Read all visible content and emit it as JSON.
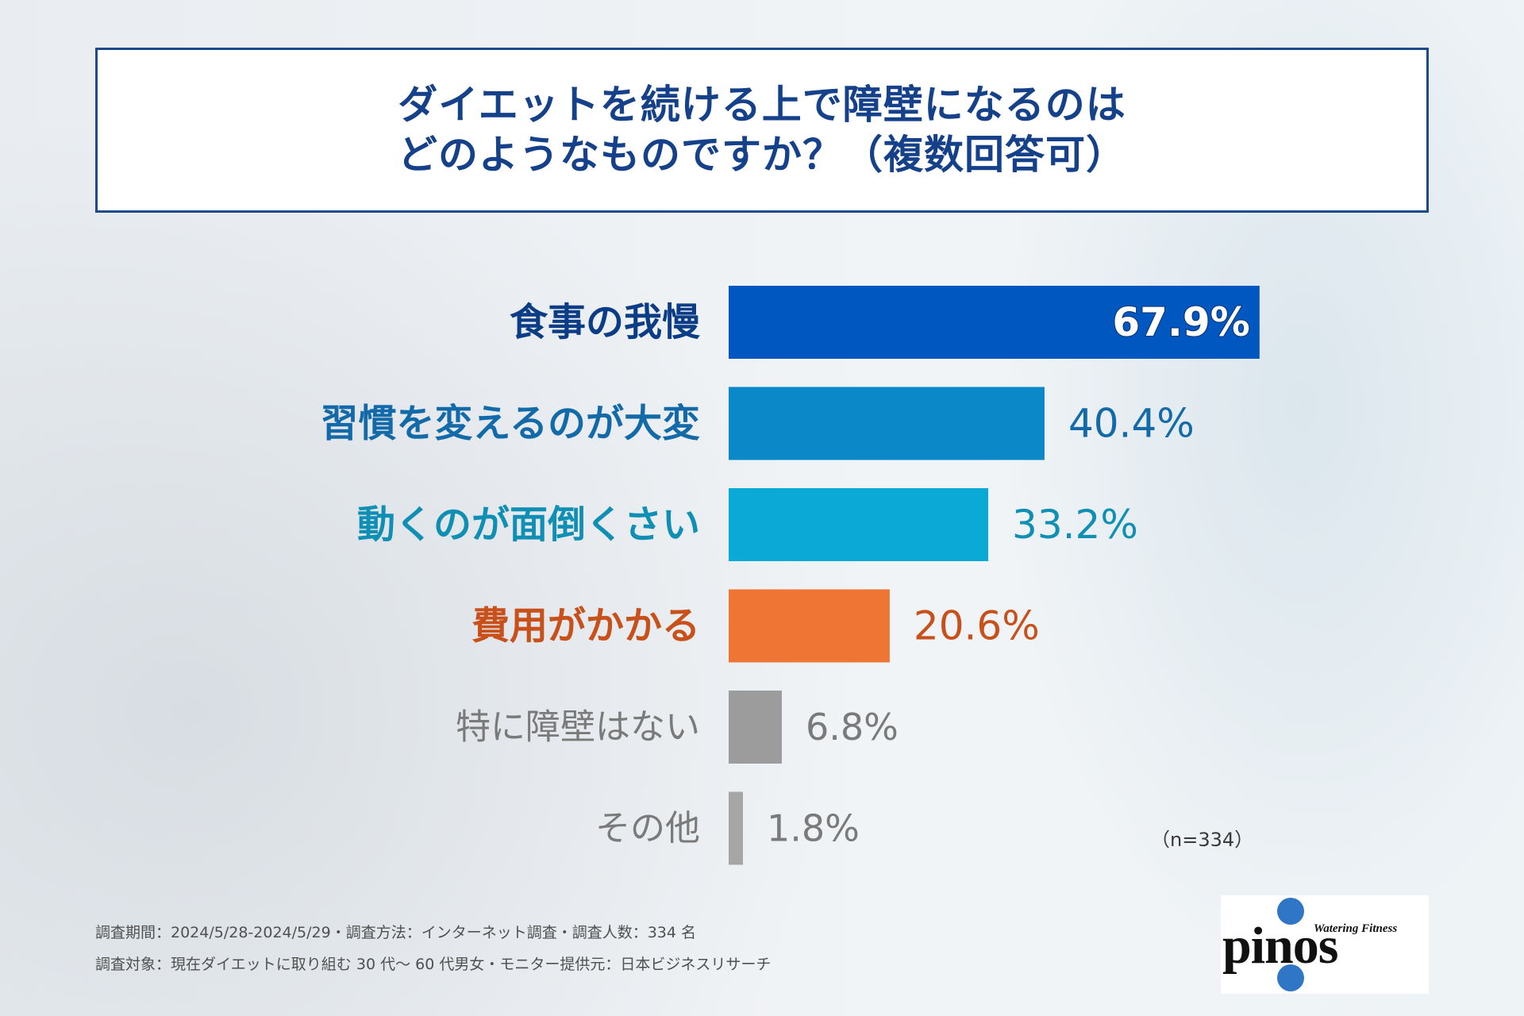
{
  "title": {
    "line1": "ダイエットを続ける上で障壁になるのは",
    "line2": "どのようなものですか？（複数回答可）"
  },
  "chart_data": {
    "type": "bar",
    "orientation": "horizontal",
    "categories": [
      "食事の我慢",
      "習慣を変えるのが大変",
      "動くのが面倒くさい",
      "費用がかかる",
      "特に障壁はない",
      "その他"
    ],
    "values": [
      67.9,
      40.4,
      33.2,
      20.6,
      6.8,
      1.8
    ],
    "value_labels": [
      "67.9%",
      "40.4%",
      "33.2%",
      "20.6%",
      "6.8%",
      "1.8%"
    ],
    "bar_colors": [
      "#0057bf",
      "#0a88c8",
      "#0aa9d6",
      "#ef7535",
      "#9c9c9c",
      "#a6a6a6"
    ],
    "label_colors": [
      "#0b3d86",
      "#136aa8",
      "#0f8fb4",
      "#c8501a",
      "#7a7a7a",
      "#7a7a7a"
    ],
    "value_colors": [
      "#ffffff",
      "#136aa8",
      "#0f8fb4",
      "#c8501a",
      "#7a7a7a",
      "#7a7a7a"
    ],
    "value_inside": [
      true,
      false,
      false,
      false,
      false,
      false
    ],
    "xlim": [
      0,
      100
    ],
    "grid": false
  },
  "sample_note": "（n=334）",
  "footnotes": {
    "line1": "調査期間：2024/5/28-2024/5/29・調査方法：インターネット調査・調査人数：334 名",
    "line2": "調査対象：現在ダイエットに取り組む 30 代～ 60 代男女・モニター提供元：日本ビジネスリサーチ"
  },
  "logo": {
    "tagline": "Watering Fitness",
    "wordmark": "pinos",
    "accent": "#2f76c6"
  }
}
